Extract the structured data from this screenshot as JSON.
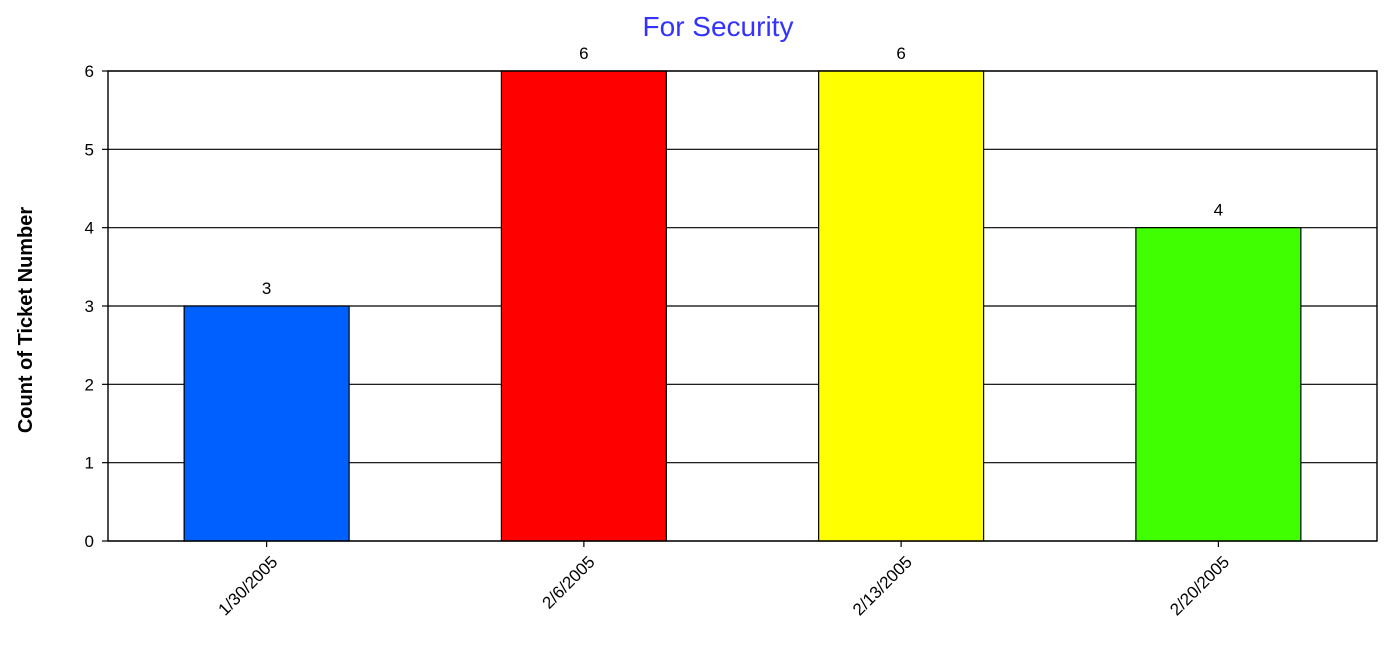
{
  "chart_data": {
    "type": "bar",
    "title": "For Security",
    "title_color": "#3333ff",
    "xlabel": "",
    "ylabel": "Count of Ticket Number",
    "categories": [
      "1/30/2005",
      "2/6/2005",
      "2/13/2005",
      "2/20/2005"
    ],
    "values": [
      3,
      6,
      6,
      4
    ],
    "data_labels": [
      "3",
      "6",
      "6",
      "4"
    ],
    "bar_colors": [
      "#0060ff",
      "#ff0000",
      "#ffff00",
      "#40ff00"
    ],
    "ylim": [
      0,
      6
    ],
    "yticks": [
      "0",
      "1",
      "2",
      "3",
      "4",
      "5",
      "6"
    ],
    "grid": true,
    "legend": "none"
  }
}
